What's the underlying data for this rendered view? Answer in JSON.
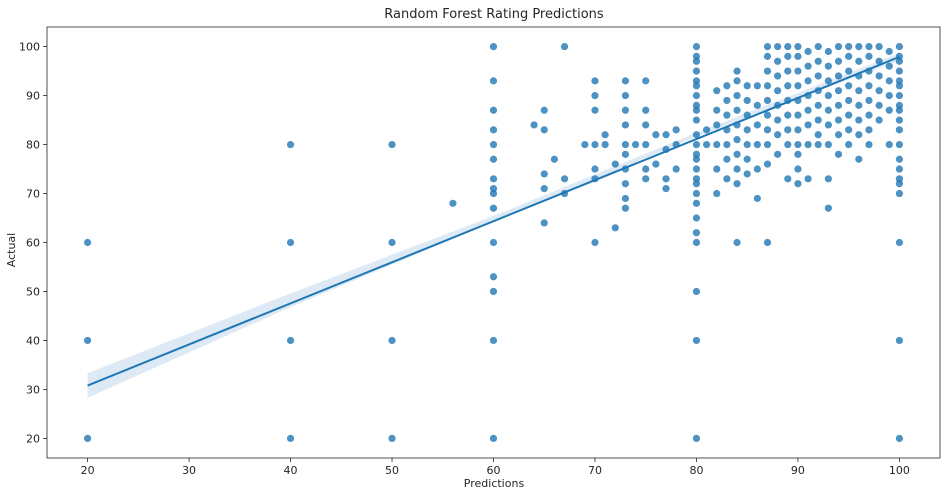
{
  "chart_data": {
    "type": "scatter",
    "title": "Random Forest Rating Predictions",
    "xlabel": "Predictions",
    "ylabel": "Actual",
    "xlim": [
      16,
      104
    ],
    "ylim": [
      16,
      104
    ],
    "xticks": [
      20,
      30,
      40,
      50,
      60,
      70,
      80,
      90,
      100
    ],
    "yticks": [
      20,
      30,
      40,
      50,
      60,
      70,
      80,
      90,
      100
    ],
    "grid": false,
    "point_color": "#1f77b4",
    "band_color": "#c6dbef",
    "points": [
      [
        20,
        20
      ],
      [
        20,
        40
      ],
      [
        20,
        60
      ],
      [
        40,
        20
      ],
      [
        40,
        40
      ],
      [
        40,
        60
      ],
      [
        40,
        80
      ],
      [
        50,
        20
      ],
      [
        50,
        40
      ],
      [
        50,
        60
      ],
      [
        50,
        80
      ],
      [
        56,
        68
      ],
      [
        60,
        20
      ],
      [
        60,
        40
      ],
      [
        60,
        50
      ],
      [
        60,
        53
      ],
      [
        60,
        60
      ],
      [
        60,
        67
      ],
      [
        60,
        70
      ],
      [
        60,
        71
      ],
      [
        60,
        73
      ],
      [
        60,
        77
      ],
      [
        60,
        80
      ],
      [
        60,
        83
      ],
      [
        60,
        87
      ],
      [
        60,
        93
      ],
      [
        60,
        100
      ],
      [
        64,
        84
      ],
      [
        65,
        64
      ],
      [
        65,
        71
      ],
      [
        65,
        74
      ],
      [
        65,
        83
      ],
      [
        65,
        87
      ],
      [
        66,
        77
      ],
      [
        67,
        70
      ],
      [
        67,
        73
      ],
      [
        67,
        100
      ],
      [
        69,
        80
      ],
      [
        70,
        60
      ],
      [
        70,
        73
      ],
      [
        70,
        75
      ],
      [
        70,
        80
      ],
      [
        70,
        87
      ],
      [
        70,
        90
      ],
      [
        70,
        93
      ],
      [
        71,
        80
      ],
      [
        71,
        82
      ],
      [
        72,
        63
      ],
      [
        72,
        76
      ],
      [
        73,
        67
      ],
      [
        73,
        69
      ],
      [
        73,
        72
      ],
      [
        73,
        75
      ],
      [
        73,
        78
      ],
      [
        73,
        80
      ],
      [
        73,
        84
      ],
      [
        73,
        87
      ],
      [
        73,
        90
      ],
      [
        73,
        93
      ],
      [
        74,
        80
      ],
      [
        75,
        73
      ],
      [
        75,
        75
      ],
      [
        75,
        80
      ],
      [
        75,
        84
      ],
      [
        75,
        87
      ],
      [
        75,
        93
      ],
      [
        76,
        76
      ],
      [
        76,
        82
      ],
      [
        77,
        71
      ],
      [
        77,
        73
      ],
      [
        77,
        79
      ],
      [
        77,
        82
      ],
      [
        78,
        75
      ],
      [
        78,
        80
      ],
      [
        78,
        83
      ],
      [
        80,
        20
      ],
      [
        80,
        40
      ],
      [
        80,
        50
      ],
      [
        80,
        60
      ],
      [
        80,
        62
      ],
      [
        80,
        65
      ],
      [
        80,
        68
      ],
      [
        80,
        70
      ],
      [
        80,
        72
      ],
      [
        80,
        73
      ],
      [
        80,
        75
      ],
      [
        80,
        77
      ],
      [
        80,
        78
      ],
      [
        80,
        80
      ],
      [
        80,
        82
      ],
      [
        80,
        85
      ],
      [
        80,
        87
      ],
      [
        80,
        88
      ],
      [
        80,
        90
      ],
      [
        80,
        92
      ],
      [
        80,
        93
      ],
      [
        80,
        95
      ],
      [
        80,
        97
      ],
      [
        80,
        98
      ],
      [
        80,
        100
      ],
      [
        81,
        80
      ],
      [
        81,
        83
      ],
      [
        82,
        70
      ],
      [
        82,
        75
      ],
      [
        82,
        80
      ],
      [
        82,
        84
      ],
      [
        82,
        87
      ],
      [
        82,
        91
      ],
      [
        83,
        73
      ],
      [
        83,
        77
      ],
      [
        83,
        80
      ],
      [
        83,
        83
      ],
      [
        83,
        86
      ],
      [
        83,
        89
      ],
      [
        83,
        92
      ],
      [
        84,
        60
      ],
      [
        84,
        72
      ],
      [
        84,
        75
      ],
      [
        84,
        78
      ],
      [
        84,
        81
      ],
      [
        84,
        84
      ],
      [
        84,
        87
      ],
      [
        84,
        90
      ],
      [
        84,
        93
      ],
      [
        84,
        95
      ],
      [
        85,
        74
      ],
      [
        85,
        77
      ],
      [
        85,
        80
      ],
      [
        85,
        83
      ],
      [
        85,
        86
      ],
      [
        85,
        89
      ],
      [
        85,
        92
      ],
      [
        86,
        69
      ],
      [
        86,
        75
      ],
      [
        86,
        80
      ],
      [
        86,
        84
      ],
      [
        86,
        88
      ],
      [
        86,
        92
      ],
      [
        87,
        60
      ],
      [
        87,
        76
      ],
      [
        87,
        80
      ],
      [
        87,
        83
      ],
      [
        87,
        86
      ],
      [
        87,
        89
      ],
      [
        87,
        92
      ],
      [
        87,
        95
      ],
      [
        87,
        98
      ],
      [
        87,
        100
      ],
      [
        88,
        78
      ],
      [
        88,
        82
      ],
      [
        88,
        85
      ],
      [
        88,
        88
      ],
      [
        88,
        91
      ],
      [
        88,
        94
      ],
      [
        88,
        97
      ],
      [
        88,
        100
      ],
      [
        89,
        73
      ],
      [
        89,
        80
      ],
      [
        89,
        83
      ],
      [
        89,
        86
      ],
      [
        89,
        89
      ],
      [
        89,
        92
      ],
      [
        89,
        95
      ],
      [
        89,
        98
      ],
      [
        89,
        100
      ],
      [
        90,
        72
      ],
      [
        90,
        75
      ],
      [
        90,
        78
      ],
      [
        90,
        80
      ],
      [
        90,
        83
      ],
      [
        90,
        86
      ],
      [
        90,
        89
      ],
      [
        90,
        92
      ],
      [
        90,
        95
      ],
      [
        90,
        98
      ],
      [
        90,
        100
      ],
      [
        91,
        73
      ],
      [
        91,
        80
      ],
      [
        91,
        84
      ],
      [
        91,
        87
      ],
      [
        91,
        90
      ],
      [
        91,
        93
      ],
      [
        91,
        96
      ],
      [
        91,
        99
      ],
      [
        92,
        80
      ],
      [
        92,
        82
      ],
      [
        92,
        85
      ],
      [
        92,
        88
      ],
      [
        92,
        91
      ],
      [
        92,
        94
      ],
      [
        92,
        97
      ],
      [
        92,
        100
      ],
      [
        93,
        67
      ],
      [
        93,
        73
      ],
      [
        93,
        80
      ],
      [
        93,
        84
      ],
      [
        93,
        87
      ],
      [
        93,
        90
      ],
      [
        93,
        93
      ],
      [
        93,
        96
      ],
      [
        93,
        99
      ],
      [
        94,
        78
      ],
      [
        94,
        82
      ],
      [
        94,
        85
      ],
      [
        94,
        88
      ],
      [
        94,
        91
      ],
      [
        94,
        94
      ],
      [
        94,
        97
      ],
      [
        94,
        100
      ],
      [
        95,
        80
      ],
      [
        95,
        83
      ],
      [
        95,
        86
      ],
      [
        95,
        89
      ],
      [
        95,
        92
      ],
      [
        95,
        95
      ],
      [
        95,
        98
      ],
      [
        95,
        100
      ],
      [
        96,
        77
      ],
      [
        96,
        82
      ],
      [
        96,
        85
      ],
      [
        96,
        88
      ],
      [
        96,
        91
      ],
      [
        96,
        94
      ],
      [
        96,
        97
      ],
      [
        96,
        100
      ],
      [
        97,
        80
      ],
      [
        97,
        83
      ],
      [
        97,
        86
      ],
      [
        97,
        89
      ],
      [
        97,
        92
      ],
      [
        97,
        95
      ],
      [
        97,
        98
      ],
      [
        97,
        100
      ],
      [
        98,
        85
      ],
      [
        98,
        88
      ],
      [
        98,
        91
      ],
      [
        98,
        94
      ],
      [
        98,
        97
      ],
      [
        98,
        100
      ],
      [
        99,
        80
      ],
      [
        99,
        87
      ],
      [
        99,
        90
      ],
      [
        99,
        93
      ],
      [
        99,
        96
      ],
      [
        99,
        99
      ],
      [
        100,
        20
      ],
      [
        100,
        40
      ],
      [
        100,
        60
      ],
      [
        100,
        70
      ],
      [
        100,
        72
      ],
      [
        100,
        73
      ],
      [
        100,
        75
      ],
      [
        100,
        77
      ],
      [
        100,
        80
      ],
      [
        100,
        83
      ],
      [
        100,
        85
      ],
      [
        100,
        87
      ],
      [
        100,
        88
      ],
      [
        100,
        90
      ],
      [
        100,
        92
      ],
      [
        100,
        93
      ],
      [
        100,
        95
      ],
      [
        100,
        97
      ],
      [
        100,
        98
      ],
      [
        100,
        100
      ]
    ],
    "regression_line": {
      "x": [
        20,
        100
      ],
      "y": [
        30.8,
        97.9
      ]
    },
    "confidence_band": {
      "x": [
        20,
        40,
        60,
        80,
        100
      ],
      "lower": [
        28.3,
        46.8,
        64.2,
        81.6,
        97.2
      ],
      "upper": [
        33.3,
        49.6,
        65.4,
        82.4,
        98.7
      ]
    }
  }
}
